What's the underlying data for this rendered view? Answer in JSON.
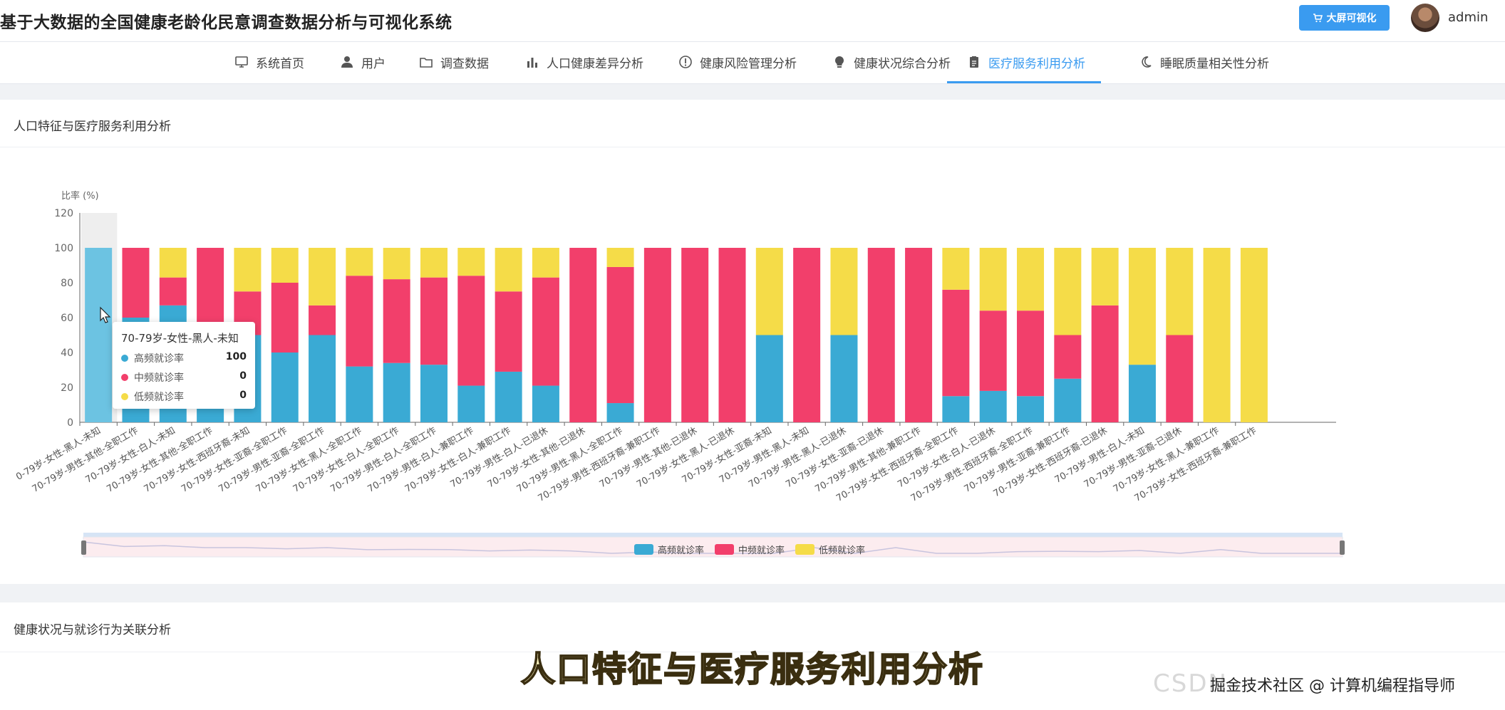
{
  "app": {
    "title": "基于大数据的全国健康老龄化民意调查数据分析与可视化系统"
  },
  "header": {
    "big_screen_label": "大屏可视化",
    "username": "admin"
  },
  "nav": [
    {
      "label": "系统首页",
      "icon": "monitor-icon",
      "active": false
    },
    {
      "label": "用户",
      "icon": "user-icon",
      "active": false
    },
    {
      "label": "调查数据",
      "icon": "folder-icon",
      "active": false
    },
    {
      "label": "人口健康差异分析",
      "icon": "bar-chart-icon",
      "active": false
    },
    {
      "label": "健康风险管理分析",
      "icon": "info-circle-icon",
      "active": false
    },
    {
      "label": "健康状况综合分析",
      "icon": "bulb-icon",
      "active": false
    },
    {
      "label": "医疗服务利用分析",
      "icon": "clipboard-icon",
      "active": true
    },
    {
      "label": "睡眠质量相关性分析",
      "icon": "moon-icon",
      "active": false
    }
  ],
  "card1": {
    "title": "人口特征与医疗服务利用分析"
  },
  "card2": {
    "title": "健康状况与就诊行为关联分析"
  },
  "tooltip": {
    "title": "70-79岁-女性-黑人-未知",
    "rows": [
      {
        "label": "高频就诊率",
        "value": "100",
        "color": "#3aaad4"
      },
      {
        "label": "中频就诊率",
        "value": "0",
        "color": "#f23f6b"
      },
      {
        "label": "低频就诊率",
        "value": "0",
        "color": "#f5dc48"
      }
    ]
  },
  "chart_data": {
    "type": "bar",
    "stacked": true,
    "ylabel": "比率 (%)",
    "ylim": [
      0,
      120
    ],
    "yticks": [
      0,
      20,
      40,
      60,
      80,
      100,
      120
    ],
    "categories": [
      "70-79岁-女性-黑人-未知",
      "70-79岁-男性-其他-全职工作",
      "70-79岁-女性-白人-未知",
      "70-79岁-女性-其他-全职工作",
      "70-79岁-女性-西班牙裔-未知",
      "70-79岁-女性-亚裔-全职工作",
      "70-79岁-男性-亚裔-全职工作",
      "70-79岁-女性-黑人-全职工作",
      "70-79岁-女性-白人-全职工作",
      "70-79岁-男性-白人-全职工作",
      "70-79岁-男性-白人-兼职工作",
      "70-79岁-女性-白人-兼职工作",
      "70-79岁-男性-白人-已退休",
      "70-79岁-女性-其他-已退休",
      "70-79岁-男性-黑人-全职工作",
      "70-79岁-男性-西班牙裔-兼职工作",
      "70-79岁-男性-其他-已退休",
      "70-79岁-女性-黑人-已退休",
      "70-79岁-女性-亚裔-未知",
      "70-79岁-男性-黑人-未知",
      "70-79岁-男性-黑人-已退休",
      "70-79岁-女性-亚裔-已退休",
      "70-79岁-男性-其他-兼职工作",
      "70-79岁-女性-西班牙裔-全职工作",
      "70-79岁-女性-白人-已退休",
      "70-79岁-男性-西班牙裔-全职工作",
      "70-79岁-男性-亚裔-兼职工作",
      "70-79岁-女性-西班牙裔-已退休",
      "70-79岁-男性-白人-未知",
      "70-79岁-男性-亚裔-已退休",
      "70-79岁-女性-黑人-兼职工作",
      "70-79岁-女性-西班牙裔-兼职工作"
    ],
    "visible_tick_labels": [
      "0-79岁-女性-黑人-未知",
      "70-79岁-男性-其他-全职工作",
      "70-79岁-女性-白人-未知",
      "70-79岁-女性-其他-全职工作",
      "70-79岁-女性-西班牙裔-未知",
      "70-79岁-女性-亚裔-全职工作",
      "70-79岁-男性-亚裔-全职工作",
      "70-79岁-女性-黑人-全职工作",
      "70-79岁-女性-白人-全职工作",
      "70-79岁-男性-白人-全职工作",
      "70-79岁-男性-白人-兼职工作",
      "70-79岁-女性-白人-兼职工作",
      "70-79岁-男性-白人-已退休",
      "70-79岁-女性-其他-已退休",
      "70-79岁-男性-黑人-全职工作",
      "70-79岁-男性-西班牙裔-兼职工作",
      "70-79岁-男性-其他-已退休",
      "70-79岁-女性-黑人-已退休",
      "70-79岁-女性-亚裔-未知",
      "70-79岁-男性-黑人-未知",
      "70-79岁-男性-黑人-已退休",
      "70-79岁-女性-亚裔-已退休",
      "70-79岁-男性-其他-兼职工作",
      "70-79岁-女性-西班牙裔-全职工作",
      "70-79岁-女性-白人-已退休",
      "70-79岁-男性-西班牙裔-全职工作",
      "70-79岁-男性-亚裔-兼职工作",
      "70-79岁-女性-西班牙裔-已退休",
      "70-79岁-男性-白人-未知",
      "70-79岁-男性-亚裔-已退休",
      "70-79岁-女性-黑人-兼职工作",
      "70-79岁-女性-西班牙裔-兼职工作"
    ],
    "series": [
      {
        "name": "高频就诊率",
        "color": "#3aaad4",
        "values": [
          100,
          60,
          67,
          50,
          50,
          40,
          50,
          32,
          34,
          33,
          21,
          29,
          21,
          0,
          11,
          0,
          0,
          0,
          50,
          0,
          50,
          0,
          0,
          15,
          18,
          15,
          25,
          0,
          33,
          0,
          0,
          0
        ]
      },
      {
        "name": "中频就诊率",
        "color": "#f23f6b",
        "values": [
          0,
          40,
          16,
          50,
          25,
          40,
          17,
          52,
          48,
          50,
          63,
          46,
          62,
          100,
          78,
          100,
          100,
          100,
          0,
          100,
          0,
          100,
          100,
          61,
          46,
          49,
          25,
          67,
          0,
          50,
          0,
          0
        ]
      },
      {
        "name": "低频就诊率",
        "color": "#f5dc48",
        "values": [
          0,
          0,
          17,
          0,
          25,
          20,
          33,
          16,
          18,
          17,
          16,
          25,
          17,
          0,
          11,
          0,
          0,
          0,
          50,
          0,
          50,
          0,
          0,
          24,
          36,
          36,
          50,
          33,
          67,
          50,
          100,
          100
        ]
      }
    ],
    "hover_index": 0,
    "legend_position": "bottom-center",
    "grid": false
  },
  "subtitle_text": "人口特征与医疗服务利用分析",
  "watermark": {
    "csdn": "CSDN",
    "text": "掘金技术社区 @ 计算机编程指导师"
  }
}
